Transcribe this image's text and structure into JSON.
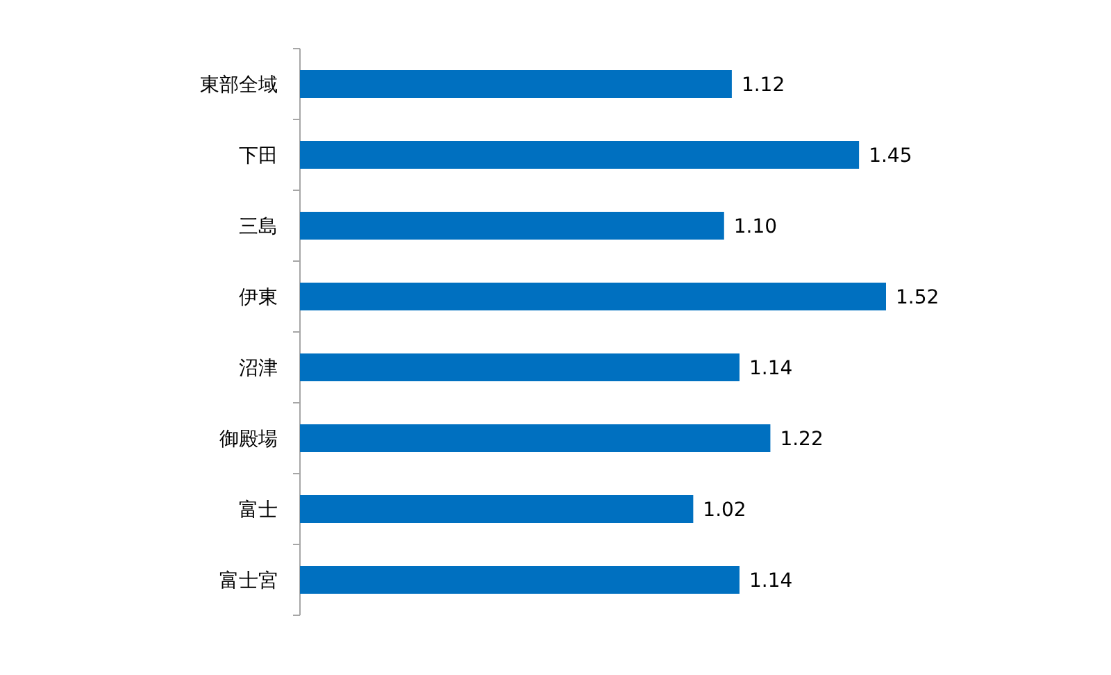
{
  "chart_data": {
    "type": "bar",
    "orientation": "horizontal",
    "categories": [
      "東部全域",
      "下田",
      "三島",
      "伊東",
      "沼津",
      "御殿場",
      "富士",
      "富士宮"
    ],
    "values": [
      1.12,
      1.45,
      1.1,
      1.52,
      1.14,
      1.22,
      1.02,
      1.14
    ],
    "value_labels": [
      "1.12",
      "1.45",
      "1.10",
      "1.52",
      "1.14",
      "1.22",
      "1.02",
      "1.14"
    ],
    "color": "#0070c0"
  }
}
